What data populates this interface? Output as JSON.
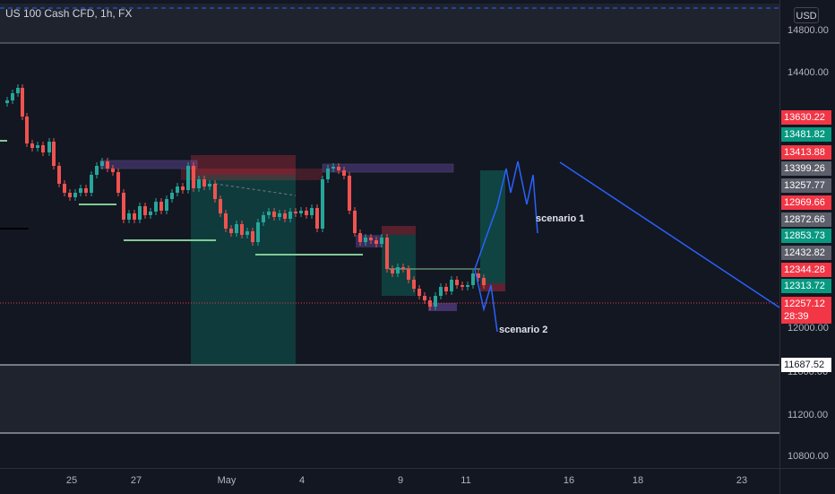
{
  "header": {
    "symbol": "US 100 Cash CFD, 1h, FX",
    "currency": "USD"
  },
  "price_scale": {
    "ticks": [
      "14800.00",
      "14400.00",
      "12000.00",
      "11600.00",
      "11200.00",
      "10800.00"
    ],
    "labels": [
      {
        "text": "13630.22",
        "color": "#f23645"
      },
      {
        "text": "13481.82",
        "color": "#089981"
      },
      {
        "text": "13413.88",
        "color": "#f23645"
      },
      {
        "text": "13399.26",
        "color": "#5d606b"
      },
      {
        "text": "13257.77",
        "color": "#5d606b"
      },
      {
        "text": "12969.66",
        "color": "#f23645"
      },
      {
        "text": "12872.66",
        "color": "#5d606b"
      },
      {
        "text": "12853.73",
        "color": "#089981"
      },
      {
        "text": "12432.82",
        "color": "#5d606b"
      },
      {
        "text": "12344.28",
        "color": "#f23645"
      },
      {
        "text": "12313.72",
        "color": "#089981"
      }
    ],
    "current_price": "12257.12",
    "countdown": "28:39",
    "line_level": "11687.52"
  },
  "time_scale": [
    "25",
    "27",
    "May",
    "4",
    "9",
    "11",
    "16",
    "18",
    "23"
  ],
  "annotations": {
    "scenario1": "scenario 1",
    "scenario2": "scenario 2"
  },
  "colors": {
    "background": "#131722",
    "up": "#26a69a",
    "down": "#ef5350",
    "projection": "#2962ff"
  }
}
